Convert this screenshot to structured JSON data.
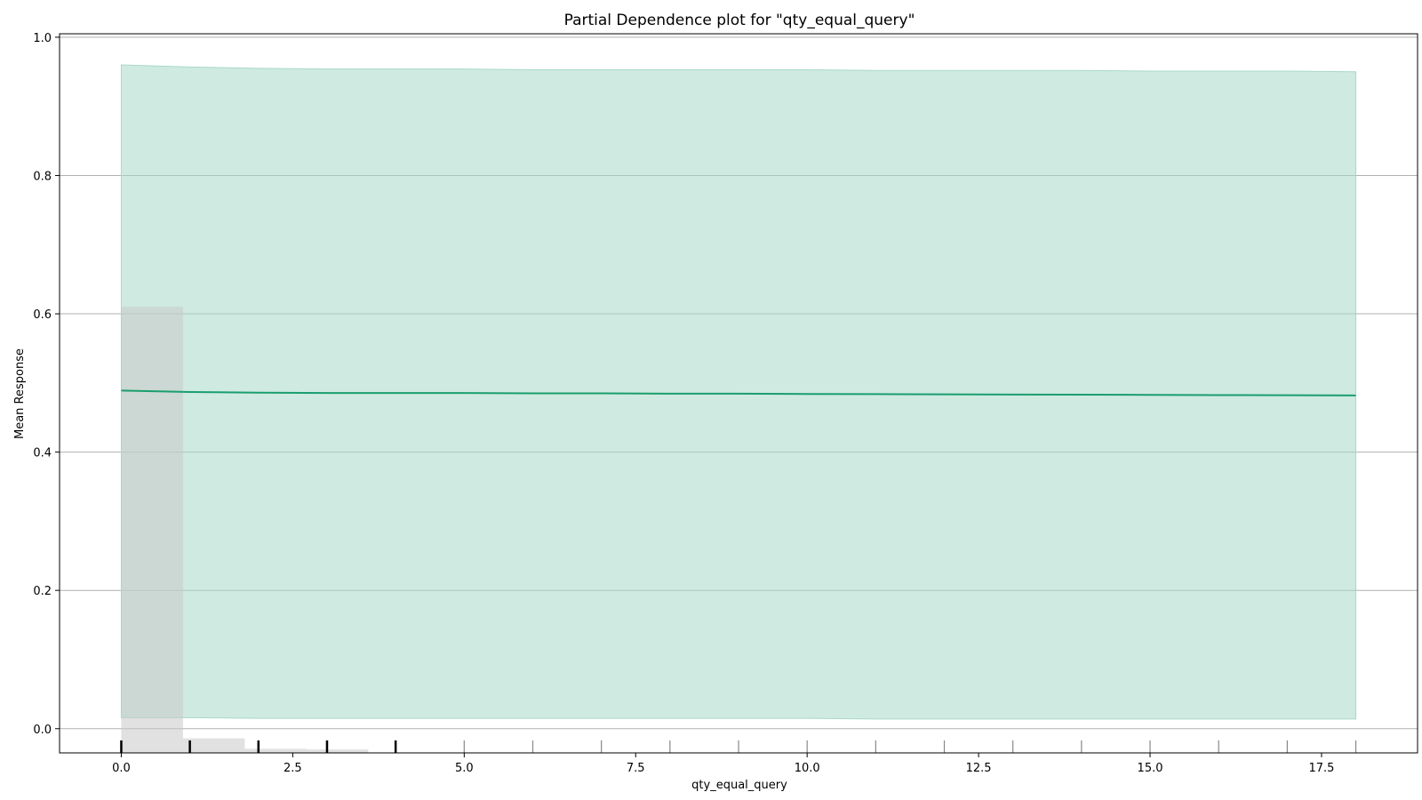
{
  "chart_data": {
    "type": "line",
    "title": "Partial Dependence plot for \"qty_equal_query\"",
    "xlabel": "qty_equal_query",
    "ylabel": "Mean Response",
    "xlim": [
      -0.9,
      18.9
    ],
    "ylim": [
      -0.035,
      1.005
    ],
    "x_ticks": [
      0.0,
      2.5,
      5.0,
      7.5,
      10.0,
      12.5,
      15.0,
      17.5
    ],
    "x_tick_labels": [
      "0.0",
      "2.5",
      "5.0",
      "7.5",
      "10.0",
      "12.5",
      "15.0",
      "17.5"
    ],
    "y_ticks": [
      0.0,
      0.2,
      0.4,
      0.6,
      0.8,
      1.0
    ],
    "y_tick_labels": [
      "0.0",
      "0.2",
      "0.4",
      "0.6",
      "0.8",
      "1.0"
    ],
    "grid": "horizontal",
    "line_color": "#1a9e6e",
    "band_color": "#a8d9c8",
    "hist_color": "#c8c8c8",
    "series": [
      {
        "x": [
          0,
          1,
          2,
          3,
          4,
          5,
          6,
          7,
          8,
          9,
          10,
          11,
          12,
          13,
          14,
          15,
          16,
          17,
          18
        ],
        "values": [
          0.489,
          0.487,
          0.486,
          0.4855,
          0.4855,
          0.4855,
          0.485,
          0.485,
          0.4845,
          0.4845,
          0.484,
          0.4838,
          0.4835,
          0.4833,
          0.483,
          0.4828,
          0.4825,
          0.4823,
          0.482
        ],
        "lower": [
          0.016,
          0.016,
          0.015,
          0.015,
          0.015,
          0.015,
          0.015,
          0.015,
          0.015,
          0.015,
          0.015,
          0.014,
          0.014,
          0.014,
          0.014,
          0.014,
          0.014,
          0.014,
          0.014
        ],
        "upper": [
          0.96,
          0.957,
          0.955,
          0.954,
          0.954,
          0.954,
          0.953,
          0.953,
          0.953,
          0.953,
          0.953,
          0.952,
          0.952,
          0.952,
          0.952,
          0.951,
          0.951,
          0.951,
          0.95
        ]
      }
    ],
    "histogram": {
      "bins": [
        {
          "x0": 0.0,
          "x1": 0.9,
          "top": 0.61
        },
        {
          "x0": 0.9,
          "x1": 1.8,
          "top": -0.014
        },
        {
          "x0": 1.8,
          "x1": 2.7,
          "top": -0.029
        },
        {
          "x0": 2.7,
          "x1": 3.6,
          "top": -0.03
        }
      ]
    },
    "rug": [
      {
        "x": 0,
        "strong": true
      },
      {
        "x": 1,
        "strong": true
      },
      {
        "x": 2,
        "strong": true
      },
      {
        "x": 3,
        "strong": true
      },
      {
        "x": 4,
        "strong": true
      },
      {
        "x": 5,
        "strong": false
      },
      {
        "x": 6,
        "strong": false
      },
      {
        "x": 7,
        "strong": false
      },
      {
        "x": 8,
        "strong": false
      },
      {
        "x": 9,
        "strong": false
      },
      {
        "x": 10,
        "strong": false
      },
      {
        "x": 11,
        "strong": false
      },
      {
        "x": 12,
        "strong": false
      },
      {
        "x": 13,
        "strong": false
      },
      {
        "x": 14,
        "strong": false
      },
      {
        "x": 15,
        "strong": false
      },
      {
        "x": 16,
        "strong": false
      },
      {
        "x": 17,
        "strong": false
      },
      {
        "x": 18,
        "strong": false
      }
    ]
  }
}
